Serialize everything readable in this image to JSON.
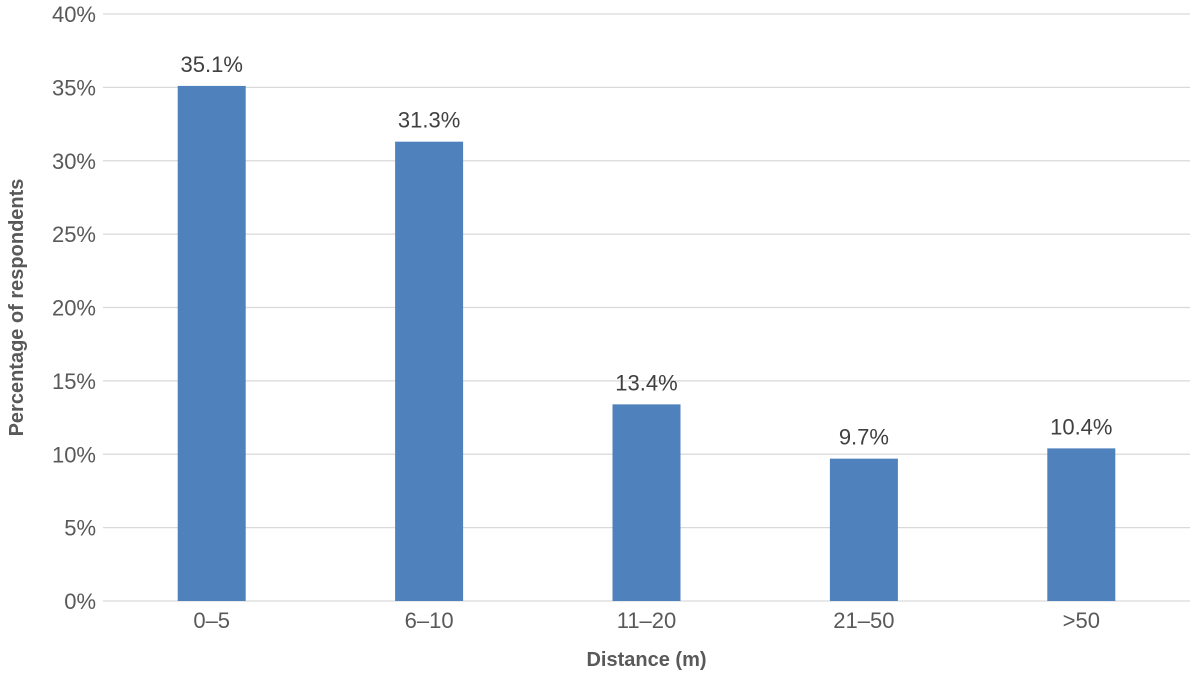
{
  "chart_data": {
    "type": "bar",
    "categories": [
      "0–5",
      "6–10",
      "11–20",
      "21–50",
      ">50"
    ],
    "values": [
      35.1,
      31.3,
      13.4,
      9.7,
      10.4
    ],
    "data_labels": [
      "35.1%",
      "31.3%",
      "13.4%",
      "9.7%",
      "10.4%"
    ],
    "title": "",
    "xlabel": "Distance (m)",
    "ylabel": "Percentage of respondents",
    "ylim": [
      0,
      40
    ],
    "y_ticks": [
      0,
      5,
      10,
      15,
      20,
      25,
      30,
      35,
      40
    ],
    "y_tick_labels": [
      "0%",
      "5%",
      "10%",
      "15%",
      "20%",
      "25%",
      "30%",
      "35%",
      "40%"
    ],
    "grid": true,
    "legend": "none",
    "colors": {
      "bar": "#4f81bd",
      "grid": "#d9d9d9",
      "tick_text": "#595959",
      "label_text": "#404040"
    }
  }
}
